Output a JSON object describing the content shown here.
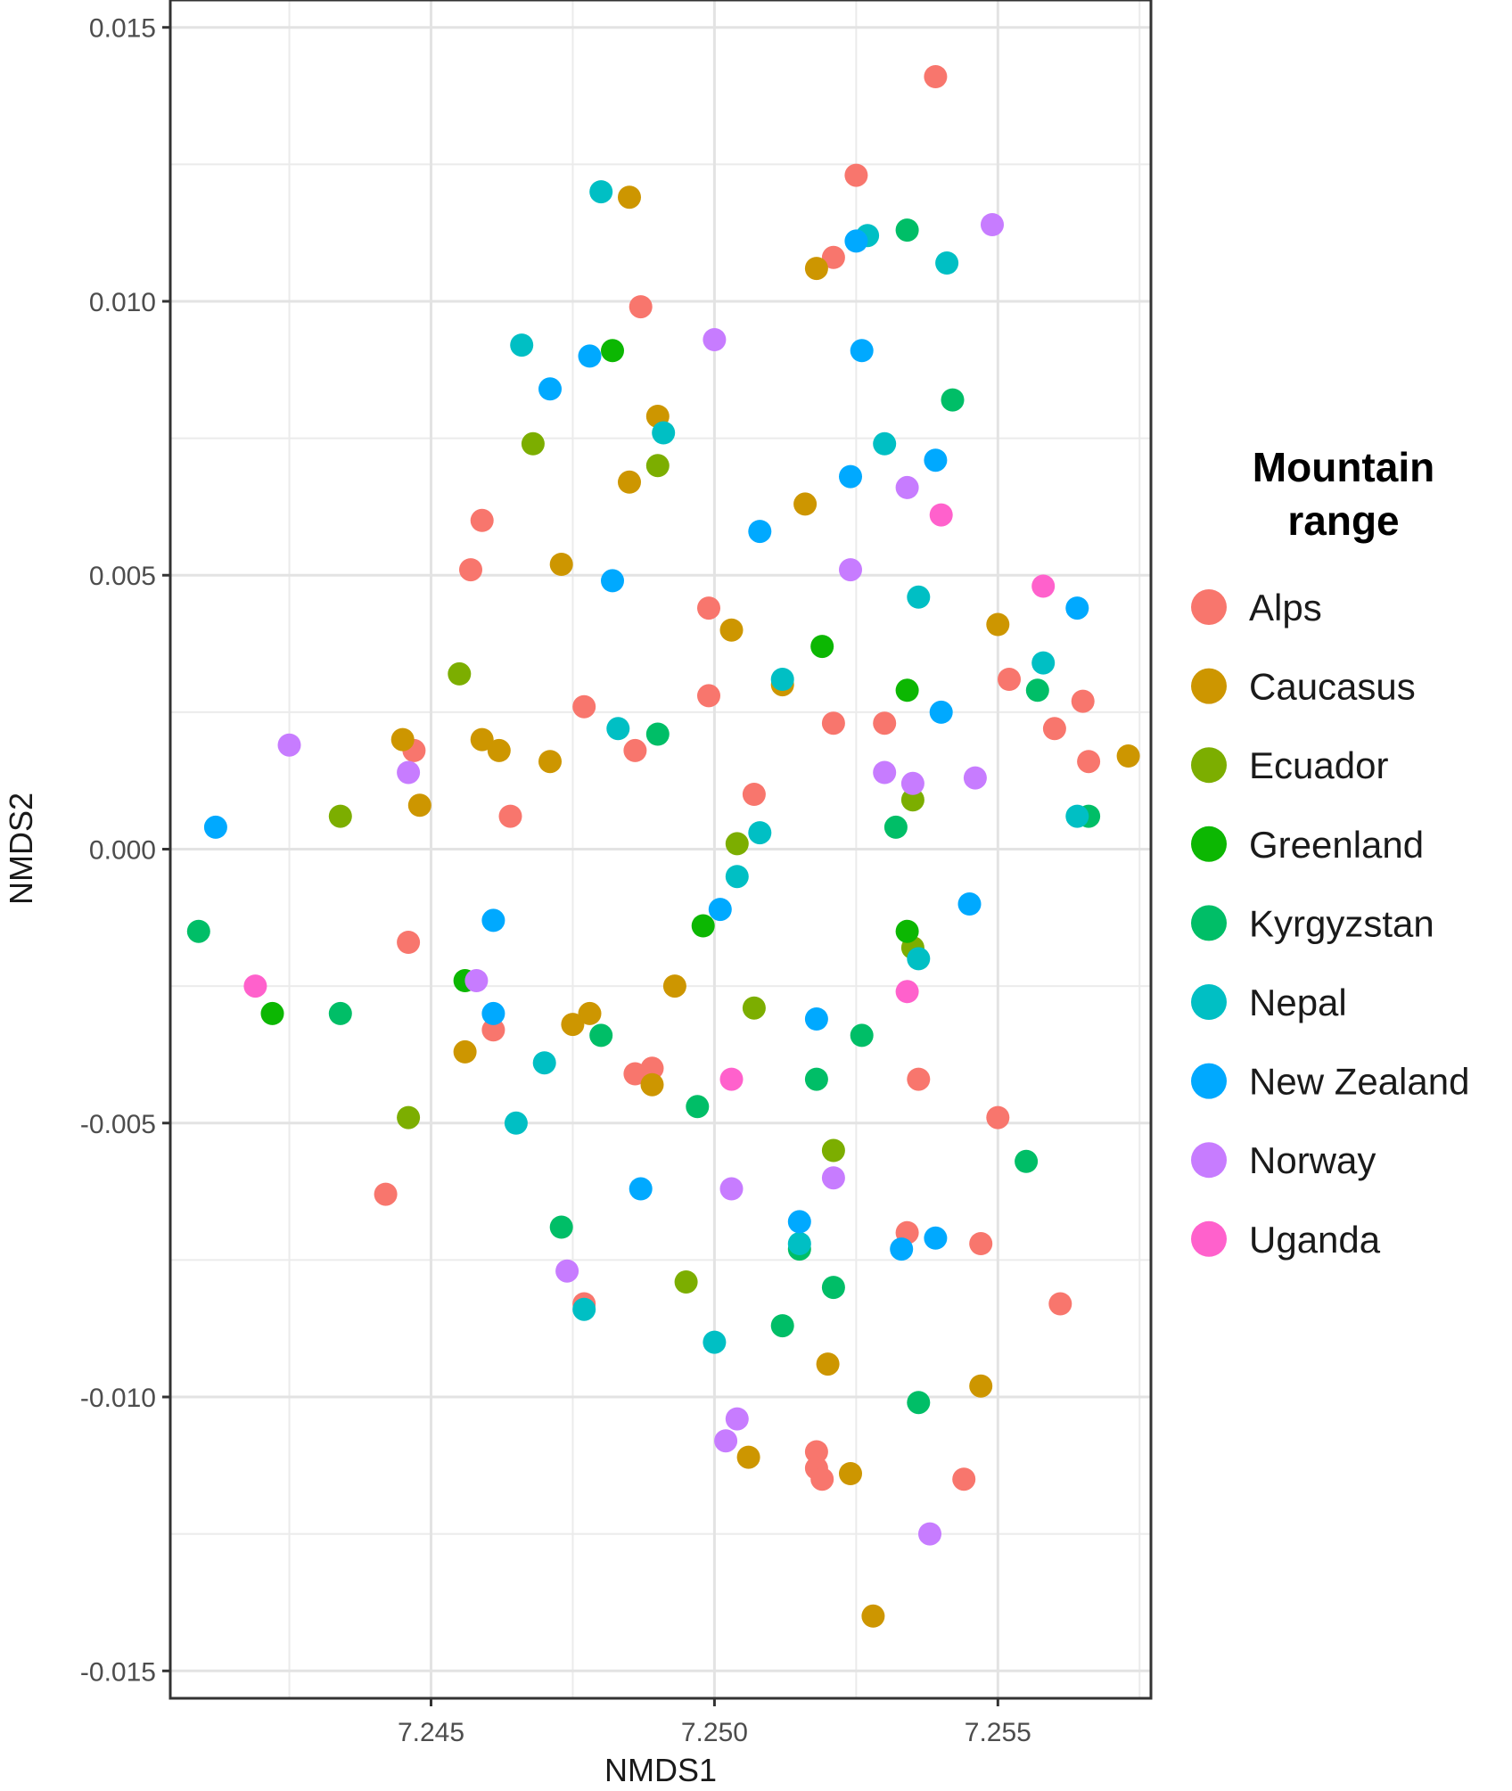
{
  "chart_data": {
    "type": "scatter",
    "title": "",
    "xlabel": "NMDS1",
    "ylabel": "NMDS2",
    "xlim": [
      7.2404,
      7.2577
    ],
    "ylim": [
      -0.0155,
      0.0155
    ],
    "xticks": [
      7.245,
      7.25,
      7.255
    ],
    "xtick_labels": [
      "7.245",
      "7.250",
      "7.255"
    ],
    "yticks": [
      -0.015,
      -0.01,
      -0.005,
      0.0,
      0.005,
      0.01,
      0.015
    ],
    "ytick_labels": [
      "-0.015",
      "-0.010",
      "-0.005",
      "0.000",
      "0.005",
      "0.010",
      "0.015"
    ],
    "grid": true,
    "legend_position": "right",
    "legend_title": "Mountain\nrange",
    "series": [
      {
        "name": "Alps",
        "color": "#F8766D",
        "points": [
          [
            7.2539,
            0.0141
          ],
          [
            7.2525,
            0.0123
          ],
          [
            7.2521,
            0.0108
          ],
          [
            7.2487,
            0.0099
          ],
          [
            7.2459,
            0.006
          ],
          [
            7.2457,
            0.0051
          ],
          [
            7.2499,
            0.0044
          ],
          [
            7.2499,
            0.0028
          ],
          [
            7.2477,
            0.0026
          ],
          [
            7.2486,
            0.0018
          ],
          [
            7.2552,
            0.0031
          ],
          [
            7.2565,
            0.0027
          ],
          [
            7.256,
            0.0022
          ],
          [
            7.2566,
            0.0016
          ],
          [
            7.2521,
            0.0023
          ],
          [
            7.253,
            0.0023
          ],
          [
            7.2507,
            0.001
          ],
          [
            7.2447,
            0.0018
          ],
          [
            7.2464,
            0.0006
          ],
          [
            7.2446,
            -0.0017
          ],
          [
            7.2461,
            -0.0033
          ],
          [
            7.2486,
            -0.0041
          ],
          [
            7.2489,
            -0.004
          ],
          [
            7.2536,
            -0.0042
          ],
          [
            7.255,
            -0.0049
          ],
          [
            7.2442,
            -0.0063
          ],
          [
            7.2534,
            -0.007
          ],
          [
            7.2547,
            -0.0072
          ],
          [
            7.2477,
            -0.0083
          ],
          [
            7.2561,
            -0.0083
          ],
          [
            7.2518,
            -0.011
          ],
          [
            7.2518,
            -0.0113
          ],
          [
            7.2519,
            -0.0115
          ],
          [
            7.2544,
            -0.0115
          ]
        ]
      },
      {
        "name": "Caucasus",
        "color": "#CD9600",
        "points": [
          [
            7.2485,
            0.0119
          ],
          [
            7.2518,
            0.0106
          ],
          [
            7.249,
            0.0079
          ],
          [
            7.2485,
            0.0067
          ],
          [
            7.2516,
            0.0063
          ],
          [
            7.2473,
            0.0052
          ],
          [
            7.2503,
            0.004
          ],
          [
            7.255,
            0.0041
          ],
          [
            7.2512,
            0.003
          ],
          [
            7.2445,
            0.002
          ],
          [
            7.2459,
            0.002
          ],
          [
            7.2462,
            0.0018
          ],
          [
            7.2471,
            0.0016
          ],
          [
            7.2448,
            0.0008
          ],
          [
            7.2573,
            0.0017
          ],
          [
            7.2493,
            -0.0025
          ],
          [
            7.2478,
            -0.003
          ],
          [
            7.2475,
            -0.0032
          ],
          [
            7.2456,
            -0.0037
          ],
          [
            7.2489,
            -0.0043
          ],
          [
            7.252,
            -0.0094
          ],
          [
            7.2547,
            -0.0098
          ],
          [
            7.2506,
            -0.0111
          ],
          [
            7.2524,
            -0.0114
          ],
          [
            7.2528,
            -0.014
          ]
        ]
      },
      {
        "name": "Ecuador",
        "color": "#7CAE00",
        "points": [
          [
            7.2468,
            0.0074
          ],
          [
            7.249,
            0.007
          ],
          [
            7.2455,
            0.0032
          ],
          [
            7.2434,
            0.0006
          ],
          [
            7.2504,
            0.0001
          ],
          [
            7.2535,
            0.0009
          ],
          [
            7.2535,
            -0.0018
          ],
          [
            7.2507,
            -0.0029
          ],
          [
            7.2446,
            -0.0049
          ],
          [
            7.2521,
            -0.0055
          ],
          [
            7.2495,
            -0.0079
          ]
        ]
      },
      {
        "name": "Greenland",
        "color": "#0CB702",
        "points": [
          [
            7.2482,
            0.0091
          ],
          [
            7.2519,
            0.0037
          ],
          [
            7.2534,
            0.0029
          ],
          [
            7.2498,
            -0.0014
          ],
          [
            7.2534,
            -0.0015
          ],
          [
            7.2456,
            -0.0024
          ],
          [
            7.2422,
            -0.003
          ]
        ]
      },
      {
        "name": "Kyrgyzstan",
        "color": "#00BE67",
        "points": [
          [
            7.2534,
            0.0113
          ],
          [
            7.2542,
            0.0082
          ],
          [
            7.2557,
            0.0029
          ],
          [
            7.249,
            0.0021
          ],
          [
            7.2532,
            0.0004
          ],
          [
            7.2566,
            0.0006
          ],
          [
            7.2409,
            -0.0015
          ],
          [
            7.2434,
            -0.003
          ],
          [
            7.248,
            -0.0034
          ],
          [
            7.2526,
            -0.0034
          ],
          [
            7.2518,
            -0.0042
          ],
          [
            7.2497,
            -0.0047
          ],
          [
            7.2555,
            -0.0057
          ],
          [
            7.2473,
            -0.0069
          ],
          [
            7.2515,
            -0.0073
          ],
          [
            7.2521,
            -0.008
          ],
          [
            7.2512,
            -0.0087
          ],
          [
            7.2536,
            -0.0101
          ]
        ]
      },
      {
        "name": "Nepal",
        "color": "#00BFC4",
        "points": [
          [
            7.248,
            0.012
          ],
          [
            7.2527,
            0.0112
          ],
          [
            7.2541,
            0.0107
          ],
          [
            7.2466,
            0.0092
          ],
          [
            7.2491,
            0.0076
          ],
          [
            7.253,
            0.0074
          ],
          [
            7.2536,
            0.0046
          ],
          [
            7.2558,
            0.0034
          ],
          [
            7.2512,
            0.0031
          ],
          [
            7.2483,
            0.0022
          ],
          [
            7.2564,
            0.0006
          ],
          [
            7.2508,
            0.0003
          ],
          [
            7.2504,
            -0.0005
          ],
          [
            7.2536,
            -0.002
          ],
          [
            7.247,
            -0.0039
          ],
          [
            7.2465,
            -0.005
          ],
          [
            7.2515,
            -0.0072
          ],
          [
            7.2477,
            -0.0084
          ],
          [
            7.25,
            -0.009
          ]
        ]
      },
      {
        "name": "New Zealand",
        "color": "#00A9FF",
        "points": [
          [
            7.2525,
            0.0111
          ],
          [
            7.2478,
            0.009
          ],
          [
            7.2526,
            0.0091
          ],
          [
            7.2471,
            0.0084
          ],
          [
            7.2539,
            0.0071
          ],
          [
            7.2524,
            0.0068
          ],
          [
            7.2508,
            0.0058
          ],
          [
            7.2482,
            0.0049
          ],
          [
            7.2564,
            0.0044
          ],
          [
            7.254,
            0.0025
          ],
          [
            7.2412,
            0.0004
          ],
          [
            7.2501,
            -0.0011
          ],
          [
            7.2545,
            -0.001
          ],
          [
            7.2461,
            -0.0013
          ],
          [
            7.2461,
            -0.003
          ],
          [
            7.2518,
            -0.0031
          ],
          [
            7.2487,
            -0.0062
          ],
          [
            7.2515,
            -0.0068
          ],
          [
            7.2539,
            -0.0071
          ],
          [
            7.2533,
            -0.0073
          ]
        ]
      },
      {
        "name": "Norway",
        "color": "#C77CFF",
        "points": [
          [
            7.2549,
            0.0114
          ],
          [
            7.25,
            0.0093
          ],
          [
            7.2534,
            0.0066
          ],
          [
            7.2524,
            0.0051
          ],
          [
            7.2425,
            0.0019
          ],
          [
            7.2446,
            0.0014
          ],
          [
            7.253,
            0.0014
          ],
          [
            7.2535,
            0.0012
          ],
          [
            7.2546,
            0.0013
          ],
          [
            7.2458,
            -0.0024
          ],
          [
            7.2521,
            -0.006
          ],
          [
            7.2503,
            -0.0062
          ],
          [
            7.2474,
            -0.0077
          ],
          [
            7.2504,
            -0.0104
          ],
          [
            7.2502,
            -0.0108
          ],
          [
            7.2538,
            -0.0125
          ]
        ]
      },
      {
        "name": "Uganda",
        "color": "#FF61CC",
        "points": [
          [
            7.254,
            0.0061
          ],
          [
            7.2558,
            0.0048
          ],
          [
            7.2419,
            -0.0025
          ],
          [
            7.2534,
            -0.0026
          ],
          [
            7.2503,
            -0.0042
          ]
        ]
      }
    ]
  }
}
